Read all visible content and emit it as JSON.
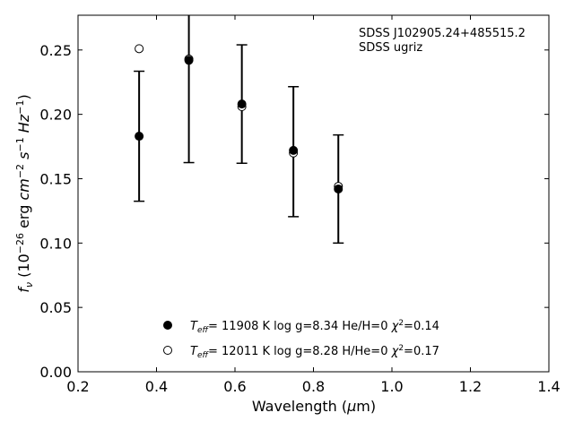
{
  "chart_data": {
    "type": "scatter",
    "annotation": [
      "SDSS J102905.24+485515.2",
      "SDSS ugriz"
    ],
    "xlabel": "Wavelength (μm)",
    "ylabel": "fν (10⁻²⁶ erg cm⁻² s⁻¹ Hz⁻¹)",
    "xlim": [
      0.2,
      1.4
    ],
    "ylim": [
      0.0,
      0.277
    ],
    "xticks": [
      0.2,
      0.4,
      0.6,
      0.8,
      1.0,
      1.2,
      1.4
    ],
    "yticks": [
      0.0,
      0.05,
      0.1,
      0.15,
      0.2,
      0.25
    ],
    "xtick_labels": [
      "0.2",
      "0.4",
      "0.6",
      "0.8",
      "1.0",
      "1.2",
      "1.4"
    ],
    "ytick_labels": [
      "0.00",
      "0.05",
      "0.10",
      "0.15",
      "0.20",
      "0.25"
    ],
    "grid": false,
    "legend_position": "bottom-center",
    "observed": {
      "x": [
        0.3557,
        0.4825,
        0.6175,
        0.7489,
        0.8634
      ],
      "y": [
        0.183,
        0.243,
        0.208,
        0.171,
        0.142
      ],
      "yerr": [
        0.0505,
        0.0805,
        0.046,
        0.0505,
        0.042
      ]
    },
    "series": [
      {
        "label": "T_eff= 11908 K  log g=8.34  He/H=0  χ²=0.14",
        "marker": "filled",
        "x": [
          0.3557,
          0.4825,
          0.6175,
          0.7489,
          0.8634
        ],
        "y": [
          0.183,
          0.242,
          0.208,
          0.172,
          0.142
        ]
      },
      {
        "label": "T_eff= 12011 K  log g=8.28  H/He=0  χ²=0.17",
        "marker": "open",
        "x": [
          0.3557,
          0.4825,
          0.6175,
          0.7489,
          0.8634
        ],
        "y": [
          0.251,
          0.243,
          0.206,
          0.17,
          0.144
        ]
      }
    ],
    "legend": [
      {
        "teff": "11908",
        "logg": "8.34",
        "comp": "He/H=0",
        "chi2": "0.14"
      },
      {
        "teff": "12011",
        "logg": "8.28",
        "comp": "H/He=0",
        "chi2": "0.17"
      }
    ]
  }
}
